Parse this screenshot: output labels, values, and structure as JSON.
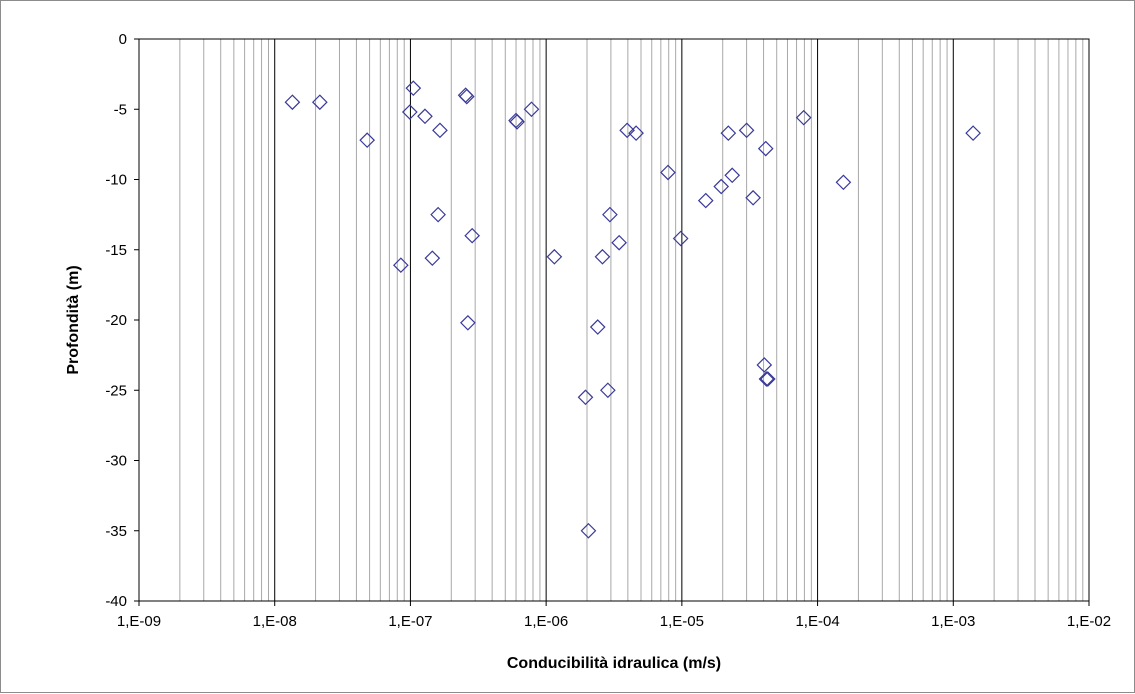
{
  "chart_data": {
    "type": "scatter",
    "title": "",
    "xlabel": "Conducibilità idraulica  (m/s)",
    "ylabel": "Profondità (m)",
    "x_scale": "log",
    "xlim": [
      1e-09,
      0.01
    ],
    "ylim": [
      -40,
      0
    ],
    "x_tick_values": [
      1e-09,
      1e-08,
      1e-07,
      1e-06,
      1e-05,
      0.0001,
      0.001,
      0.01
    ],
    "x_tick_labels": [
      "1,E-09",
      "1,E-08",
      "1,E-07",
      "1,E-06",
      "1,E-05",
      "1,E-04",
      "1,E-03",
      "1,E-02"
    ],
    "y_tick_values": [
      0,
      -5,
      -10,
      -15,
      -20,
      -25,
      -30,
      -35,
      -40
    ],
    "y_tick_labels": [
      "0",
      "-5",
      "-10",
      "-15",
      "-20",
      "-25",
      "-30",
      "-35",
      "-40"
    ],
    "grid": "vertical minor and major log gridlines",
    "marker": "diamond-open",
    "marker_color": "#3a3a9a",
    "series": [
      {
        "x": [
          1.35e-08,
          2.15e-08,
          4.8e-08,
          8.5e-08,
          9.9e-08,
          1.05e-07,
          1.28e-07,
          1.45e-07,
          1.6e-07,
          1.65e-07,
          2.55e-07,
          2.6e-07,
          2.65e-07,
          2.85e-07,
          6e-07,
          6.1e-07,
          7.8e-07,
          1.15e-06,
          1.95e-06,
          2.05e-06,
          2.4e-06,
          2.6e-06,
          2.85e-06,
          2.95e-06,
          3.45e-06,
          3.95e-06,
          4.6e-06,
          7.9e-06,
          9.8e-06,
          1.5e-05,
          1.95e-05,
          2.2e-05,
          2.35e-05,
          3e-05,
          3.35e-05,
          4.05e-05,
          4.15e-05,
          4.2e-05,
          4.3e-05,
          7.9e-05,
          0.000155,
          0.0014
        ],
        "y": [
          -4.5,
          -4.5,
          -7.2,
          -16.1,
          -5.2,
          -3.5,
          -5.5,
          -15.6,
          -12.5,
          -6.5,
          -4.0,
          -4.1,
          -20.2,
          -14.0,
          -5.8,
          -5.9,
          -5.0,
          -15.5,
          -25.5,
          -35.0,
          -20.5,
          -15.5,
          -25.0,
          -12.5,
          -14.5,
          -6.5,
          -6.7,
          -9.5,
          -14.2,
          -11.5,
          -10.5,
          -6.7,
          -9.7,
          -6.5,
          -11.3,
          -23.2,
          -7.8,
          -24.2,
          -24.2,
          -5.6,
          -10.2,
          -6.7
        ]
      }
    ]
  }
}
